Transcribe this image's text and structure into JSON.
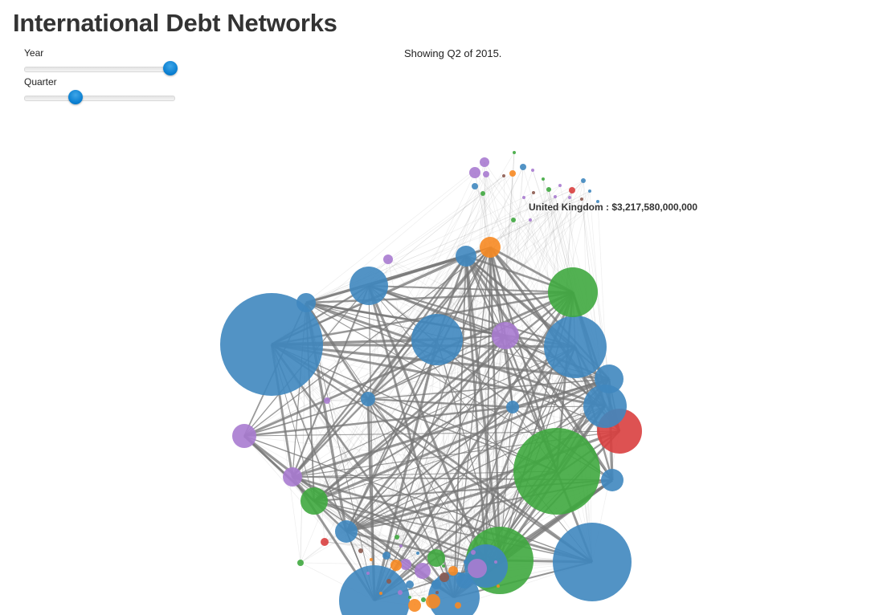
{
  "header": {
    "title": "International Debt Networks"
  },
  "controls": {
    "year": {
      "label": "Year",
      "value_fraction": 1.0
    },
    "quarter": {
      "label": "Quarter",
      "value_fraction": 0.33
    }
  },
  "status": {
    "text": "Showing Q2 of 2015."
  },
  "tooltip": {
    "text": "United Kingdom : $3,217,580,000,000"
  },
  "colors": {
    "blue": "#3f87bf",
    "green": "#3fa83f",
    "purple": "#a97bd0",
    "orange": "#f78a22",
    "red": "#d93f3f",
    "brown": "#8c5a4f",
    "edge": "#777777"
  }
}
